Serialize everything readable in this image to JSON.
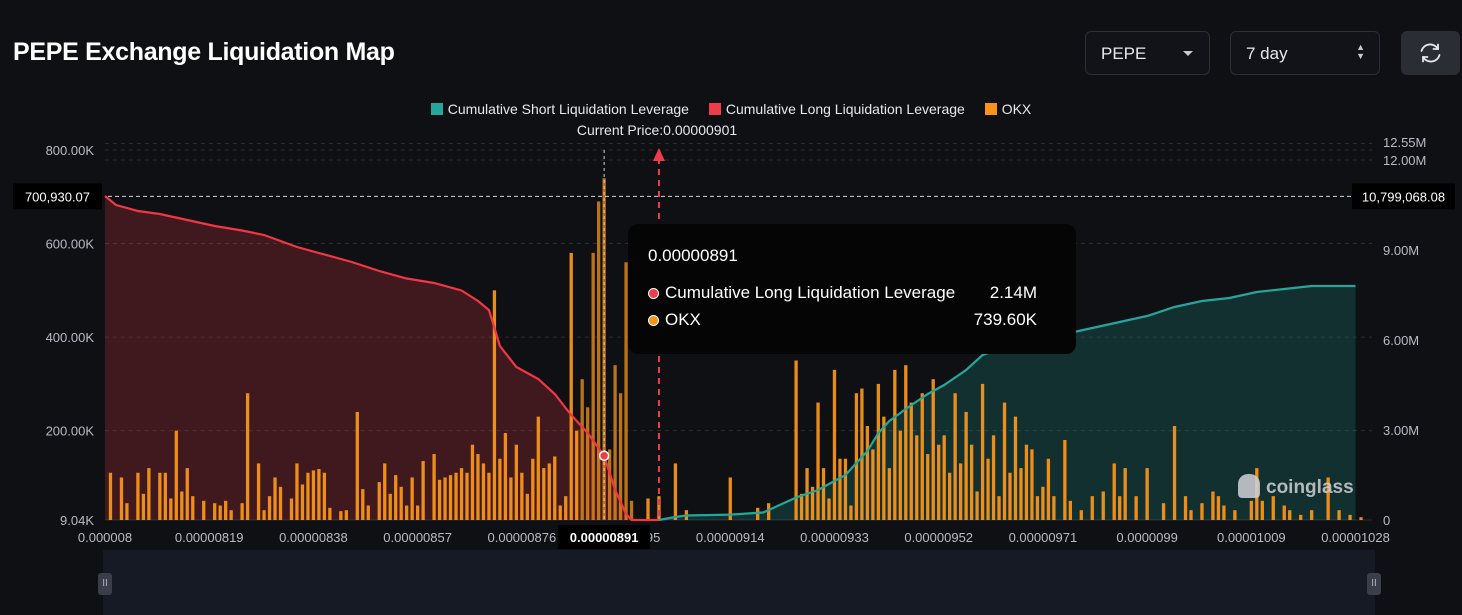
{
  "title": "PEPE Exchange Liquidation Map",
  "controls": {
    "symbol": "PEPE",
    "timeframe": "7 day",
    "refresh_icon": "refresh-icon"
  },
  "legend": [
    {
      "label": "Cumulative Short Liquidation Leverage",
      "color": "#26a69a"
    },
    {
      "label": "Cumulative Long Liquidation Leverage",
      "color": "#ef3c4b"
    },
    {
      "label": "OKX",
      "color": "#f7931a"
    }
  ],
  "current_price_label": "Current Price:0.00000901",
  "crosshair": {
    "left_value": "700,930.07",
    "right_value": "10,799,068.08",
    "x_value": "0.00000891"
  },
  "tooltip": {
    "title": "0.00000891",
    "rows": [
      {
        "name": "Cumulative Long Liquidation Leverage",
        "value": "2.14M",
        "color": "#ef3c4b"
      },
      {
        "name": "OKX",
        "value": "739.60K",
        "color": "#f7931a"
      }
    ]
  },
  "watermark": "coinglass",
  "chart_data": {
    "type": "bar",
    "x_min": 8e-06,
    "x_max": 1.031e-05,
    "current_price": 9.01e-06,
    "x_ticks": [
      "0.000008",
      "0.00000819",
      "0.00000838",
      "0.00000857",
      "0.00000876",
      "0.00000895",
      "0.00000914",
      "0.00000933",
      "0.00000952",
      "0.00000971",
      "0.0000099",
      "0.00001009",
      "0.00001028"
    ],
    "left_axis": {
      "ticks": [
        "9.04K",
        "200.00K",
        "400.00K",
        "600.00K",
        "800.00K"
      ],
      "ylim": [
        9040,
        800000
      ]
    },
    "right_axis": {
      "ticks": [
        "0",
        "3.00M",
        "6.00M",
        "9.00M",
        "12.00M",
        "12.55M"
      ],
      "ylim": [
        0,
        12000000
      ]
    },
    "bars_okx": [
      [
        8.01e-06,
        110000
      ],
      [
        8.03e-06,
        100000
      ],
      [
        8.04e-06,
        45000
      ],
      [
        8.06e-06,
        110000
      ],
      [
        8.07e-06,
        65000
      ],
      [
        8.08e-06,
        120000
      ],
      [
        8.1e-06,
        110000
      ],
      [
        8.11e-06,
        110000
      ],
      [
        8.12e-06,
        55000
      ],
      [
        8.13e-06,
        200000
      ],
      [
        8.14e-06,
        70000
      ],
      [
        8.15e-06,
        120000
      ],
      [
        8.16e-06,
        60000
      ],
      [
        8.18e-06,
        50000
      ],
      [
        8.2e-06,
        45000
      ],
      [
        8.21e-06,
        40000
      ],
      [
        8.22e-06,
        50000
      ],
      [
        8.23e-06,
        30000
      ],
      [
        8.25e-06,
        45000
      ],
      [
        8.26e-06,
        280000
      ],
      [
        8.28e-06,
        130000
      ],
      [
        8.29e-06,
        30000
      ],
      [
        8.3e-06,
        60000
      ],
      [
        8.31e-06,
        100000
      ],
      [
        8.32e-06,
        80000
      ],
      [
        8.34e-06,
        55000
      ],
      [
        8.35e-06,
        130000
      ],
      [
        8.36e-06,
        85000
      ],
      [
        8.37e-06,
        110000
      ],
      [
        8.38e-06,
        115000
      ],
      [
        8.39e-06,
        118000
      ],
      [
        8.4e-06,
        110000
      ],
      [
        8.41e-06,
        35000
      ],
      [
        8.43e-06,
        28000
      ],
      [
        8.44e-06,
        30000
      ],
      [
        8.46e-06,
        240000
      ],
      [
        8.47e-06,
        75000
      ],
      [
        8.48e-06,
        40000
      ],
      [
        8.5e-06,
        90000
      ],
      [
        8.51e-06,
        130000
      ],
      [
        8.52e-06,
        65000
      ],
      [
        8.53e-06,
        105000
      ],
      [
        8.54e-06,
        80000
      ],
      [
        8.55e-06,
        40000
      ],
      [
        8.56e-06,
        100000
      ],
      [
        8.57e-06,
        40000
      ],
      [
        8.58e-06,
        135000
      ],
      [
        8.6e-06,
        150000
      ],
      [
        8.61e-06,
        95000
      ],
      [
        8.62e-06,
        100000
      ],
      [
        8.63e-06,
        105000
      ],
      [
        8.64e-06,
        110000
      ],
      [
        8.65e-06,
        120000
      ],
      [
        8.66e-06,
        110000
      ],
      [
        8.67e-06,
        170000
      ],
      [
        8.68e-06,
        150000
      ],
      [
        8.69e-06,
        130000
      ],
      [
        8.7e-06,
        110000
      ],
      [
        8.71e-06,
        500000
      ],
      [
        8.72e-06,
        140000
      ],
      [
        8.73e-06,
        195000
      ],
      [
        8.74e-06,
        100000
      ],
      [
        8.75e-06,
        170000
      ],
      [
        8.76e-06,
        110000
      ],
      [
        8.77e-06,
        65000
      ],
      [
        8.78e-06,
        140000
      ],
      [
        8.79e-06,
        230000
      ],
      [
        8.8e-06,
        120000
      ],
      [
        8.81e-06,
        130000
      ],
      [
        8.82e-06,
        145000
      ],
      [
        8.83e-06,
        40000
      ],
      [
        8.84e-06,
        60000
      ],
      [
        8.85e-06,
        580000
      ],
      [
        8.86e-06,
        200000
      ],
      [
        8.87e-06,
        310000
      ],
      [
        8.88e-06,
        250000
      ],
      [
        8.89e-06,
        580000
      ],
      [
        8.9e-06,
        690000
      ],
      [
        8.91e-06,
        739600
      ],
      [
        8.92e-06,
        160000
      ],
      [
        8.93e-06,
        340000
      ],
      [
        8.94e-06,
        280000
      ],
      [
        8.95e-06,
        560000
      ],
      [
        8.96e-06,
        50000
      ],
      [
        8.99e-06,
        55000
      ],
      [
        9.01e-06,
        60000
      ],
      [
        9.04e-06,
        130000
      ],
      [
        9.06e-06,
        30000
      ],
      [
        9.14e-06,
        100000
      ],
      [
        9.19e-06,
        35000
      ],
      [
        9.21e-06,
        45000
      ],
      [
        9.26e-06,
        350000
      ],
      [
        9.27e-06,
        65000
      ],
      [
        9.28e-06,
        120000
      ],
      [
        9.29e-06,
        80000
      ],
      [
        9.3e-06,
        260000
      ],
      [
        9.31e-06,
        120000
      ],
      [
        9.32e-06,
        55000
      ],
      [
        9.33e-06,
        330000
      ],
      [
        9.34e-06,
        140000
      ],
      [
        9.35e-06,
        140000
      ],
      [
        9.36e-06,
        40000
      ],
      [
        9.37e-06,
        280000
      ],
      [
        9.38e-06,
        290000
      ],
      [
        9.39e-06,
        210000
      ],
      [
        9.4e-06,
        160000
      ],
      [
        9.41e-06,
        300000
      ],
      [
        9.42e-06,
        230000
      ],
      [
        9.43e-06,
        120000
      ],
      [
        9.44e-06,
        330000
      ],
      [
        9.45e-06,
        200000
      ],
      [
        9.46e-06,
        340000
      ],
      [
        9.47e-06,
        260000
      ],
      [
        9.48e-06,
        190000
      ],
      [
        9.49e-06,
        280000
      ],
      [
        9.5e-06,
        150000
      ],
      [
        9.51e-06,
        310000
      ],
      [
        9.52e-06,
        170000
      ],
      [
        9.53e-06,
        190000
      ],
      [
        9.54e-06,
        110000
      ],
      [
        9.55e-06,
        280000
      ],
      [
        9.56e-06,
        130000
      ],
      [
        9.57e-06,
        240000
      ],
      [
        9.58e-06,
        170000
      ],
      [
        9.59e-06,
        70000
      ],
      [
        9.6e-06,
        300000
      ],
      [
        9.61e-06,
        140000
      ],
      [
        9.62e-06,
        190000
      ],
      [
        9.63e-06,
        60000
      ],
      [
        9.64e-06,
        260000
      ],
      [
        9.65e-06,
        110000
      ],
      [
        9.66e-06,
        230000
      ],
      [
        9.67e-06,
        120000
      ],
      [
        9.68e-06,
        170000
      ],
      [
        9.69e-06,
        160000
      ],
      [
        9.7e-06,
        60000
      ],
      [
        9.71e-06,
        80000
      ],
      [
        9.72e-06,
        140000
      ],
      [
        9.73e-06,
        60000
      ],
      [
        9.75e-06,
        180000
      ],
      [
        9.76e-06,
        50000
      ],
      [
        9.78e-06,
        30000
      ],
      [
        9.8e-06,
        60000
      ],
      [
        9.82e-06,
        70000
      ],
      [
        9.84e-06,
        130000
      ],
      [
        9.85e-06,
        60000
      ],
      [
        9.86e-06,
        120000
      ],
      [
        9.88e-06,
        60000
      ],
      [
        9.9e-06,
        120000
      ],
      [
        9.93e-06,
        45000
      ],
      [
        9.95e-06,
        210000
      ],
      [
        9.97e-06,
        60000
      ],
      [
        9.98e-06,
        30000
      ],
      [
        1e-05,
        45000
      ],
      [
        1.002e-05,
        70000
      ],
      [
        1.003e-05,
        60000
      ],
      [
        1.004e-05,
        40000
      ],
      [
        1.006e-05,
        30000
      ],
      [
        1.009e-05,
        50000
      ],
      [
        1.01e-05,
        120000
      ],
      [
        1.011e-05,
        50000
      ],
      [
        1.013e-05,
        60000
      ],
      [
        1.015e-05,
        40000
      ],
      [
        1.016e-05,
        30000
      ],
      [
        1.018e-05,
        20000
      ],
      [
        1.02e-05,
        30000
      ],
      [
        1.023e-05,
        100000
      ],
      [
        1.025e-05,
        30000
      ],
      [
        1.027e-05,
        20000
      ],
      [
        1.029e-05,
        15000
      ]
    ],
    "long_cumulative": [
      [
        8e-06,
        10800000
      ],
      [
        8.02e-06,
        10500000
      ],
      [
        8.06e-06,
        10300000
      ],
      [
        8.1e-06,
        10200000
      ],
      [
        8.15e-06,
        10000000
      ],
      [
        8.2e-06,
        9800000
      ],
      [
        8.25e-06,
        9650000
      ],
      [
        8.29e-06,
        9500000
      ],
      [
        8.32e-06,
        9300000
      ],
      [
        8.35e-06,
        9100000
      ],
      [
        8.4e-06,
        8850000
      ],
      [
        8.45e-06,
        8600000
      ],
      [
        8.5e-06,
        8300000
      ],
      [
        8.55e-06,
        8050000
      ],
      [
        8.6e-06,
        7900000
      ],
      [
        8.65e-06,
        7650000
      ],
      [
        8.68e-06,
        7300000
      ],
      [
        8.7e-06,
        7000000
      ],
      [
        8.72e-06,
        5800000
      ],
      [
        8.75e-06,
        5100000
      ],
      [
        8.79e-06,
        4700000
      ],
      [
        8.82e-06,
        4200000
      ],
      [
        8.85e-06,
        3500000
      ],
      [
        8.88e-06,
        2900000
      ],
      [
        8.91e-06,
        2140000
      ],
      [
        8.93e-06,
        1000000
      ],
      [
        8.95e-06,
        200000
      ],
      [
        8.96e-06,
        0
      ],
      [
        9.01e-06,
        0
      ]
    ],
    "short_cumulative": [
      [
        9.01e-06,
        0
      ],
      [
        9.04e-06,
        100000
      ],
      [
        9.06e-06,
        150000
      ],
      [
        9.14e-06,
        180000
      ],
      [
        9.2e-06,
        250000
      ],
      [
        9.26e-06,
        750000
      ],
      [
        9.3e-06,
        1000000
      ],
      [
        9.33e-06,
        1300000
      ],
      [
        9.35e-06,
        1500000
      ],
      [
        9.37e-06,
        1900000
      ],
      [
        9.39e-06,
        2300000
      ],
      [
        9.41e-06,
        2900000
      ],
      [
        9.43e-06,
        3300000
      ],
      [
        9.46e-06,
        3700000
      ],
      [
        9.5e-06,
        4200000
      ],
      [
        9.53e-06,
        4500000
      ],
      [
        9.57e-06,
        5000000
      ],
      [
        9.6e-06,
        5500000
      ],
      [
        9.65e-06,
        5800000
      ],
      [
        9.7e-06,
        6000000
      ],
      [
        9.75e-06,
        6200000
      ],
      [
        9.8e-06,
        6400000
      ],
      [
        9.85e-06,
        6600000
      ],
      [
        9.9e-06,
        6800000
      ],
      [
        9.95e-06,
        7100000
      ],
      [
        1e-05,
        7300000
      ],
      [
        1.005e-05,
        7400000
      ],
      [
        1.01e-05,
        7600000
      ],
      [
        1.015e-05,
        7700000
      ],
      [
        1.02e-05,
        7800000
      ],
      [
        1.028e-05,
        7800000
      ]
    ]
  }
}
